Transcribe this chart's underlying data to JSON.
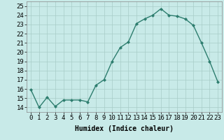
{
  "x": [
    0,
    1,
    2,
    3,
    4,
    5,
    6,
    7,
    8,
    9,
    10,
    11,
    12,
    13,
    14,
    15,
    16,
    17,
    18,
    19,
    20,
    21,
    22,
    23
  ],
  "y": [
    15.9,
    14.0,
    15.1,
    14.1,
    14.8,
    14.8,
    14.8,
    14.6,
    16.4,
    17.0,
    19.0,
    20.5,
    21.1,
    23.1,
    23.6,
    24.0,
    24.7,
    24.0,
    23.9,
    23.6,
    22.9,
    21.0,
    19.0,
    16.8
  ],
  "line_color": "#2d7d6e",
  "marker": "D",
  "marker_size": 2.0,
  "bg_color": "#c8eae8",
  "grid_color": "#a8ccc8",
  "xlabel": "Humidex (Indice chaleur)",
  "ylim": [
    13.5,
    25.5
  ],
  "xlim": [
    -0.5,
    23.5
  ],
  "yticks": [
    14,
    15,
    16,
    17,
    18,
    19,
    20,
    21,
    22,
    23,
    24,
    25
  ],
  "xticks": [
    0,
    1,
    2,
    3,
    4,
    5,
    6,
    7,
    8,
    9,
    10,
    11,
    12,
    13,
    14,
    15,
    16,
    17,
    18,
    19,
    20,
    21,
    22,
    23
  ],
  "xlabel_fontsize": 7,
  "tick_fontsize": 6.5,
  "line_width": 1.0
}
